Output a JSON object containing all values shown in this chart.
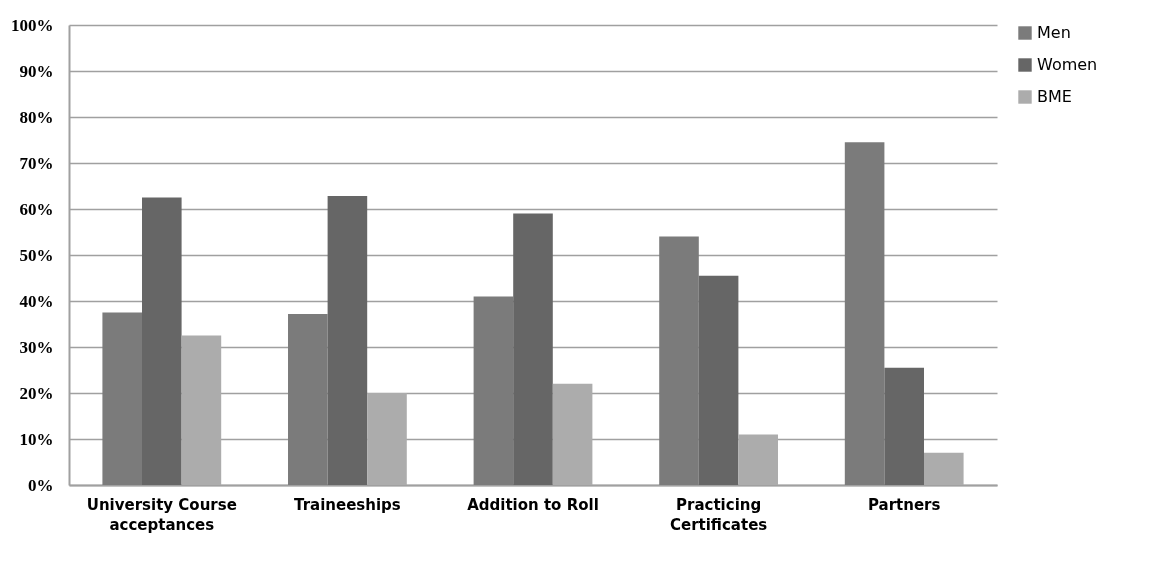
{
  "chart_data": {
    "type": "bar",
    "categories": [
      "University Course acceptances",
      "Traineeships",
      "Addition to Roll",
      "Practicing Certificates",
      "Partners"
    ],
    "series": [
      {
        "name": "Men",
        "color": "#7b7b7b",
        "values": [
          37.5,
          37.2,
          41,
          54,
          74.5
        ]
      },
      {
        "name": "Women",
        "color": "#666666",
        "values": [
          62.5,
          62.8,
          59,
          45.5,
          25.5
        ]
      },
      {
        "name": "BME",
        "color": "#acacac",
        "values": [
          32.5,
          20,
          22,
          11,
          7
        ]
      }
    ],
    "ylim": [
      0,
      100
    ],
    "yticks": [
      {
        "value": 0,
        "label": "0%"
      },
      {
        "value": 10,
        "label": "10%"
      },
      {
        "value": 20,
        "label": "20%"
      },
      {
        "value": 30,
        "label": "30%"
      },
      {
        "value": 40,
        "label": "40%"
      },
      {
        "value": 50,
        "label": "50%"
      },
      {
        "value": 60,
        "label": "60%"
      },
      {
        "value": 70,
        "label": "70%"
      },
      {
        "value": 80,
        "label": "80%"
      },
      {
        "value": 90,
        "label": "90%"
      },
      {
        "value": 100,
        "label": "100%"
      }
    ],
    "grid": "y",
    "legend": "right"
  }
}
